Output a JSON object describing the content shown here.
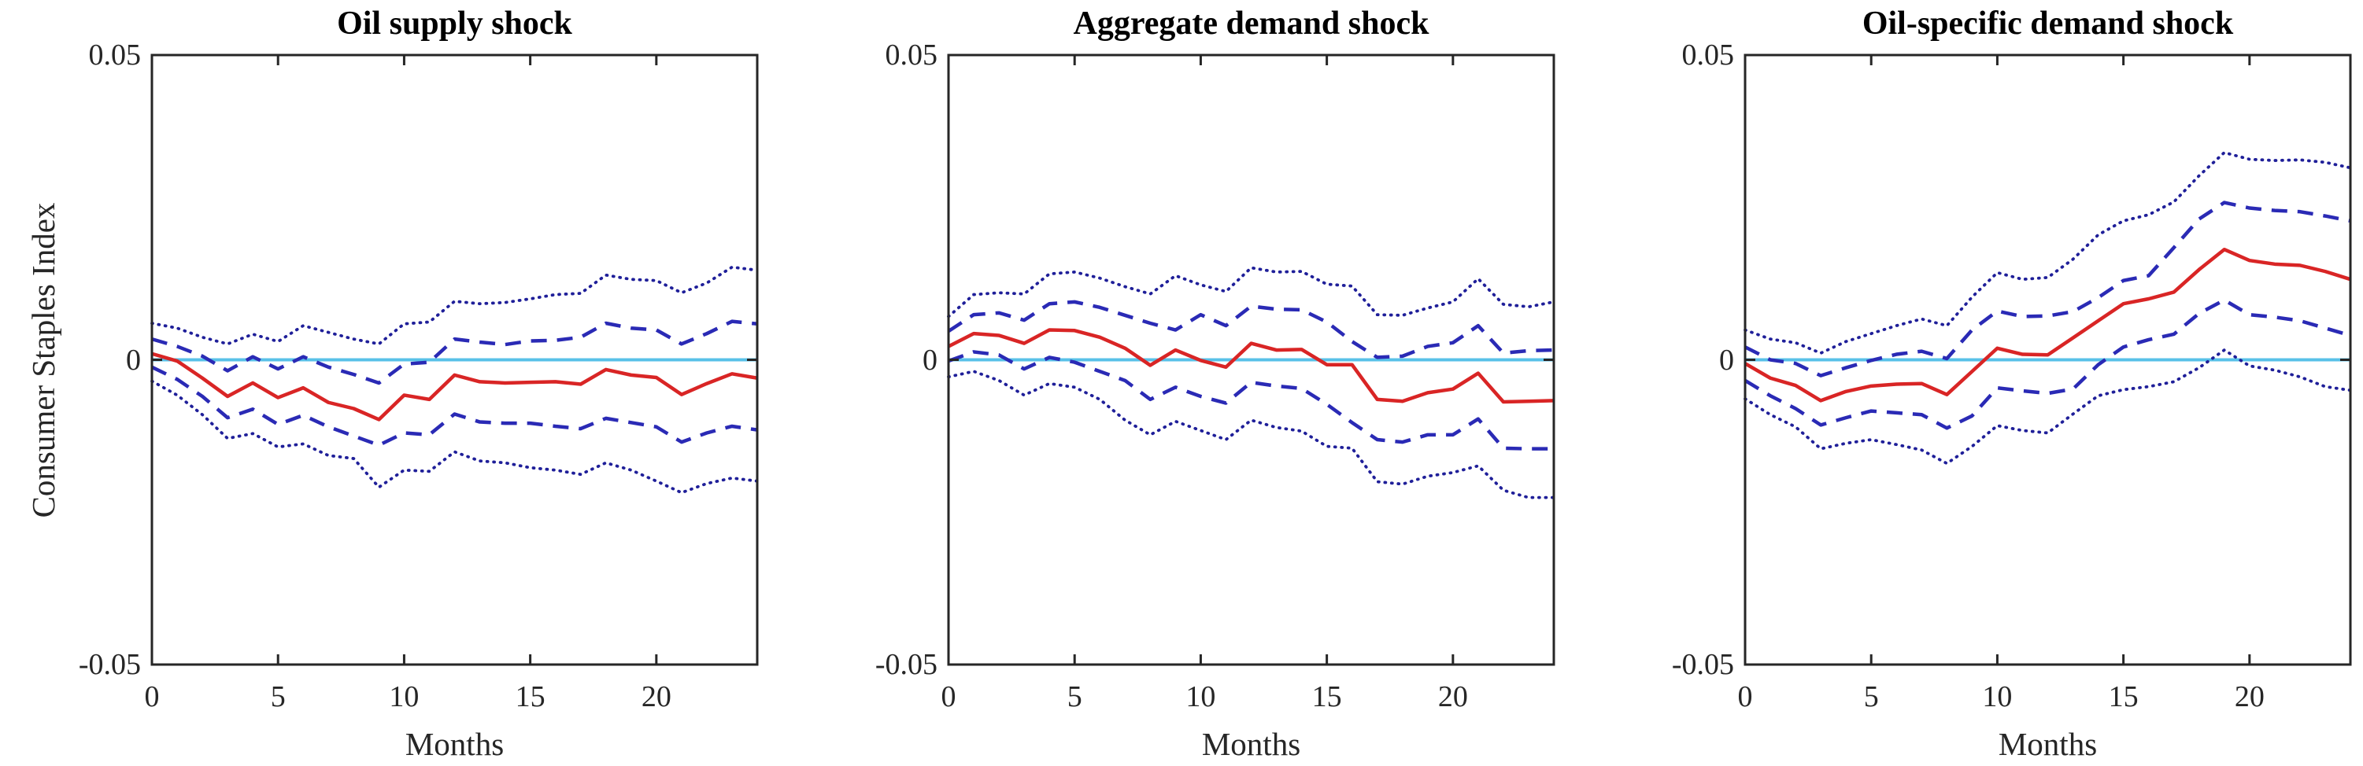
{
  "figure": {
    "ylabel": "Consumer Staples Index",
    "xlabel": "Months",
    "x_tick_labels": [
      "0",
      "5",
      "10",
      "15",
      "20"
    ],
    "x_tick_values": [
      0,
      5,
      10,
      15,
      20
    ],
    "y_tick_labels": [
      "0.05",
      "0",
      "-0.05"
    ],
    "y_tick_values": [
      0.05,
      0,
      -0.05
    ],
    "colors": {
      "median_line": "#d92525",
      "inner_band_line": "#2a2ab5",
      "outer_band_line": "#1f1f99",
      "zero_line": "#58c1e8",
      "axis": "#262626",
      "text": "#262626"
    }
  },
  "chart_data": [
    {
      "type": "line",
      "title": "Oil supply shock",
      "xlabel": "Months",
      "ylabel": "Consumer Staples Index",
      "x_range": [
        0,
        24
      ],
      "y_range": [
        -0.05,
        0.05
      ],
      "grid": false,
      "legend": "none",
      "x": [
        0,
        1,
        2,
        3,
        4,
        5,
        6,
        7,
        8,
        9,
        10,
        11,
        12,
        13,
        14,
        15,
        16,
        17,
        18,
        19,
        20,
        21,
        22,
        23,
        24
      ],
      "series": [
        {
          "name": "outer_band_upper",
          "style": "dotted",
          "values": [
            0.006,
            0.0052,
            0.0037,
            0.0026,
            0.0042,
            0.003,
            0.0056,
            0.0045,
            0.0034,
            0.0026,
            0.0059,
            0.0062,
            0.0096,
            0.0092,
            0.0094,
            0.01,
            0.0107,
            0.0109,
            0.0139,
            0.0132,
            0.013,
            0.011,
            0.0126,
            0.0152,
            0.0147
          ]
        },
        {
          "name": "inner_band_upper",
          "style": "dashed",
          "values": [
            0.0034,
            0.0022,
            0.0006,
            -0.0018,
            0.0005,
            -0.0015,
            0.0005,
            -0.0012,
            -0.0024,
            -0.0038,
            -0.0007,
            -0.0004,
            0.0034,
            0.0029,
            0.0025,
            0.0031,
            0.0032,
            0.0037,
            0.006,
            0.0052,
            0.0049,
            0.0026,
            0.0043,
            0.0063,
            0.0059
          ]
        },
        {
          "name": "median",
          "style": "solid",
          "values": [
            0.001,
            -0.0002,
            -0.003,
            -0.006,
            -0.0038,
            -0.0062,
            -0.0046,
            -0.007,
            -0.008,
            -0.0098,
            -0.0058,
            -0.0065,
            -0.0025,
            -0.0036,
            -0.0038,
            -0.0037,
            -0.0036,
            -0.004,
            -0.0016,
            -0.0025,
            -0.0029,
            -0.0057,
            -0.0039,
            -0.0023,
            -0.003
          ]
        },
        {
          "name": "inner_band_lower",
          "style": "dashed",
          "values": [
            -0.0012,
            -0.0032,
            -0.006,
            -0.0095,
            -0.0081,
            -0.0106,
            -0.0091,
            -0.011,
            -0.0125,
            -0.014,
            -0.012,
            -0.0123,
            -0.0089,
            -0.0102,
            -0.0104,
            -0.0104,
            -0.0109,
            -0.0113,
            -0.0096,
            -0.0103,
            -0.011,
            -0.0135,
            -0.012,
            -0.0109,
            -0.0115
          ]
        },
        {
          "name": "outer_band_lower",
          "style": "dotted",
          "values": [
            -0.0035,
            -0.0058,
            -0.009,
            -0.0129,
            -0.0121,
            -0.0143,
            -0.0138,
            -0.0157,
            -0.0162,
            -0.0209,
            -0.0181,
            -0.0183,
            -0.0151,
            -0.0166,
            -0.0169,
            -0.0177,
            -0.0181,
            -0.0188,
            -0.0169,
            -0.0181,
            -0.0199,
            -0.0218,
            -0.0203,
            -0.0194,
            -0.0199
          ]
        }
      ]
    },
    {
      "type": "line",
      "title": "Aggregate demand shock",
      "xlabel": "Months",
      "x_range": [
        0,
        24
      ],
      "y_range": [
        -0.05,
        0.05
      ],
      "grid": false,
      "legend": "none",
      "x": [
        0,
        1,
        2,
        3,
        4,
        5,
        6,
        7,
        8,
        9,
        10,
        11,
        12,
        13,
        14,
        15,
        16,
        17,
        18,
        19,
        20,
        21,
        22,
        23,
        24
      ],
      "series": [
        {
          "name": "outer_band_upper",
          "style": "dotted",
          "values": [
            0.0071,
            0.0107,
            0.011,
            0.0108,
            0.0141,
            0.0144,
            0.0134,
            0.012,
            0.0108,
            0.0138,
            0.0123,
            0.0112,
            0.0151,
            0.0144,
            0.0145,
            0.0124,
            0.0121,
            0.0074,
            0.0073,
            0.0085,
            0.0095,
            0.0133,
            0.0091,
            0.0087,
            0.0095
          ]
        },
        {
          "name": "inner_band_upper",
          "style": "dashed",
          "values": [
            0.0047,
            0.0074,
            0.0077,
            0.0065,
            0.0092,
            0.0095,
            0.0086,
            0.0073,
            0.006,
            0.0049,
            0.0074,
            0.0056,
            0.0088,
            0.0083,
            0.0082,
            0.0062,
            0.003,
            0.0004,
            0.0006,
            0.0022,
            0.0028,
            0.0056,
            0.0011,
            0.0015,
            0.0016
          ]
        },
        {
          "name": "median",
          "style": "solid",
          "values": [
            0.0022,
            0.0043,
            0.004,
            0.0027,
            0.0049,
            0.0048,
            0.0037,
            0.0019,
            -0.0009,
            0.0016,
            -0.0001,
            -0.0012,
            0.0027,
            0.0016,
            0.0017,
            -0.0008,
            -0.0008,
            -0.0065,
            -0.0068,
            -0.0054,
            -0.0048,
            -0.0022,
            -0.0069,
            -0.0068,
            -0.0067
          ]
        },
        {
          "name": "inner_band_lower",
          "style": "dashed",
          "values": [
            -0.0002,
            0.0013,
            0.0008,
            -0.0015,
            0.0004,
            -0.0004,
            -0.0019,
            -0.0034,
            -0.0065,
            -0.0045,
            -0.006,
            -0.0071,
            -0.0037,
            -0.0043,
            -0.0047,
            -0.0073,
            -0.0103,
            -0.0131,
            -0.0135,
            -0.0123,
            -0.0123,
            -0.0097,
            -0.0145,
            -0.0146,
            -0.0146
          ]
        },
        {
          "name": "outer_band_lower",
          "style": "dotted",
          "values": [
            -0.0028,
            -0.0019,
            -0.0034,
            -0.0058,
            -0.0039,
            -0.0045,
            -0.0065,
            -0.0099,
            -0.0123,
            -0.0101,
            -0.0116,
            -0.0131,
            -0.0099,
            -0.0111,
            -0.0117,
            -0.0142,
            -0.0145,
            -0.02,
            -0.0204,
            -0.0191,
            -0.0185,
            -0.0174,
            -0.0214,
            -0.0226,
            -0.0226
          ]
        }
      ]
    },
    {
      "type": "line",
      "title": "Oil-specific demand shock",
      "xlabel": "Months",
      "x_range": [
        0,
        24
      ],
      "y_range": [
        -0.05,
        0.05
      ],
      "grid": false,
      "legend": "none",
      "x": [
        0,
        1,
        2,
        3,
        4,
        5,
        6,
        7,
        8,
        9,
        10,
        11,
        12,
        13,
        14,
        15,
        16,
        17,
        18,
        19,
        20,
        21,
        22,
        23,
        24
      ],
      "series": [
        {
          "name": "outer_band_upper",
          "style": "dotted",
          "values": [
            0.0049,
            0.0034,
            0.0028,
            0.0011,
            0.003,
            0.0043,
            0.0056,
            0.0067,
            0.0056,
            0.0103,
            0.0143,
            0.0132,
            0.0135,
            0.0165,
            0.0205,
            0.0228,
            0.0238,
            0.0259,
            0.0302,
            0.034,
            0.0329,
            0.0327,
            0.0328,
            0.0324,
            0.0315
          ]
        },
        {
          "name": "inner_band_upper",
          "style": "dashed",
          "values": [
            0.0021,
            0.0,
            -0.0006,
            -0.0026,
            -0.0013,
            -0.0001,
            0.0009,
            0.0014,
            0.0002,
            0.0049,
            0.008,
            0.0071,
            0.0072,
            0.0079,
            0.0102,
            0.013,
            0.0138,
            0.0184,
            0.0231,
            0.0258,
            0.0249,
            0.0245,
            0.0243,
            0.0236,
            0.0228
          ]
        },
        {
          "name": "median",
          "style": "solid",
          "values": [
            -0.0006,
            -0.003,
            -0.0042,
            -0.0067,
            -0.0052,
            -0.0043,
            -0.004,
            -0.0039,
            -0.0057,
            -0.0019,
            0.0019,
            0.0009,
            0.0008,
            0.0036,
            0.0064,
            0.0092,
            0.01,
            0.0111,
            0.0148,
            0.0181,
            0.0163,
            0.0157,
            0.0155,
            0.0145,
            0.0132
          ]
        },
        {
          "name": "inner_band_lower",
          "style": "dashed",
          "values": [
            -0.0034,
            -0.0059,
            -0.008,
            -0.0107,
            -0.0095,
            -0.0084,
            -0.0087,
            -0.009,
            -0.0112,
            -0.0092,
            -0.0046,
            -0.0051,
            -0.0055,
            -0.0048,
            -0.0008,
            0.0021,
            0.0033,
            0.0042,
            0.0076,
            0.0098,
            0.0074,
            0.007,
            0.0064,
            0.0052,
            0.004
          ]
        },
        {
          "name": "outer_band_lower",
          "style": "dotted",
          "values": [
            -0.0064,
            -0.009,
            -0.011,
            -0.0146,
            -0.0137,
            -0.0131,
            -0.0139,
            -0.0148,
            -0.017,
            -0.0142,
            -0.0108,
            -0.0116,
            -0.012,
            -0.0089,
            -0.0059,
            -0.0049,
            -0.0044,
            -0.0036,
            -0.0013,
            0.0016,
            -0.001,
            -0.0017,
            -0.0028,
            -0.0044,
            -0.005
          ]
        }
      ]
    }
  ]
}
